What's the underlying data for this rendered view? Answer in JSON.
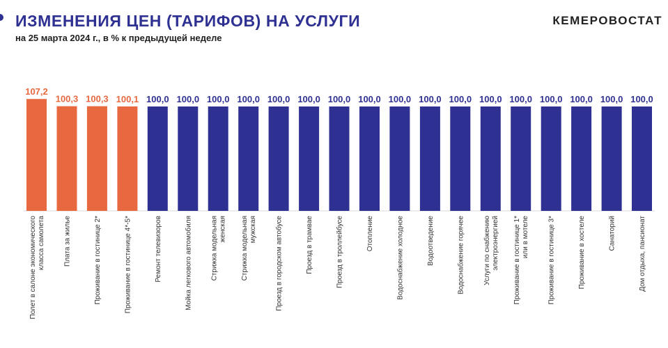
{
  "header": {
    "title": "ИЗМЕНЕНИЯ ЦЕН (ТАРИФОВ) НА УСЛУГИ",
    "subtitle": "на 25 марта 2024 г., в % к предыдущей неделе",
    "brand": "КЕМЕРОВОСТАТ"
  },
  "colors": {
    "above_100": "#e8683f",
    "at_100": "#2f3192"
  },
  "chart_data": {
    "type": "bar",
    "title": "ИЗМЕНЕНИЯ ЦЕН (ТАРИФОВ) НА УСЛУГИ",
    "subtitle": "на 25 марта 2024 г., в % к предыдущей неделе",
    "categories": [
      [
        "Полет в салоне экономического",
        "класса самолета"
      ],
      [
        "Плата за жилье"
      ],
      [
        "Проживание в гостинице 2*"
      ],
      [
        "Проживание в гостинице 4*-5*"
      ],
      [
        "Ремонт телевизоров"
      ],
      [
        "Мойка легкового автомобиля"
      ],
      [
        "Стрижка модельная",
        "женская"
      ],
      [
        "Стрижка модельная",
        "мужская"
      ],
      [
        "Проезд в городском автобусе"
      ],
      [
        "Проезд в трамвае"
      ],
      [
        "Проезд в троллейбусе"
      ],
      [
        "Отопление"
      ],
      [
        "Водоснабжение холодное"
      ],
      [
        "Водоотведение"
      ],
      [
        "Водоснабжение горячее"
      ],
      [
        "Услуги по снабжению",
        "электроэнергией"
      ],
      [
        "Проживание в гостинице 1*",
        "или в мотеле"
      ],
      [
        "Проживание в гостинице 3*"
      ],
      [
        "Проживание в хостеле"
      ],
      [
        "Санаторий"
      ],
      [
        "Дом отдыха, пансионат"
      ]
    ],
    "values": [
      107.2,
      100.3,
      100.3,
      100.1,
      100.0,
      100.0,
      100.0,
      100.0,
      100.0,
      100.0,
      100.0,
      100.0,
      100.0,
      100.0,
      100.0,
      100.0,
      100.0,
      100.0,
      100.0,
      100.0,
      100.0
    ],
    "value_labels": [
      "107,2",
      "100,3",
      "100,3",
      "100,1",
      "100,0",
      "100,0",
      "100,0",
      "100,0",
      "100,0",
      "100,0",
      "100,0",
      "100,0",
      "100,0",
      "100,0",
      "100,0",
      "100,0",
      "100,0",
      "100,0",
      "100,0",
      "100,0",
      "100,0"
    ],
    "baseline": 0,
    "axis_visible": false,
    "grid": false,
    "xlabel": "",
    "ylabel": ""
  }
}
